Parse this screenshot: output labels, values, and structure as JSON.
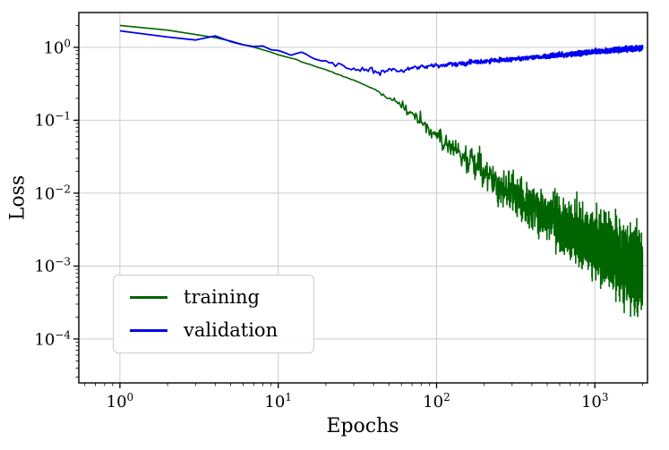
{
  "figure": {
    "background": "#ffffff"
  },
  "chart_data": {
    "type": "line",
    "title": "",
    "xlabel": "Epochs",
    "ylabel": "Loss",
    "xscale": "log",
    "yscale": "log",
    "xlim": [
      0.55,
      2150
    ],
    "ylim": [
      2.5e-05,
      3.0
    ],
    "xticks": [
      1,
      10,
      100,
      1000
    ],
    "yticks": [
      1,
      0.1,
      0.01,
      0.001,
      0.0001
    ],
    "grid": true,
    "grid_color": "#cccccc",
    "spine_color": "#000000",
    "n_epochs": 2000,
    "legend": {
      "position": "lower-left",
      "border_color": "#cccccc"
    },
    "series": [
      {
        "name": "training",
        "color": "#006400",
        "line_width": 1.6,
        "seed": 1337,
        "noise": {
          "base": 0.006,
          "slope": 0.3,
          "start": 1.6
        },
        "anchors": [
          [
            1,
            2.0
          ],
          [
            2,
            1.72
          ],
          [
            3,
            1.5
          ],
          [
            4,
            1.36
          ],
          [
            5,
            1.22
          ],
          [
            6,
            1.1
          ],
          [
            8,
            0.93
          ],
          [
            10,
            0.8
          ],
          [
            13,
            0.68
          ],
          [
            16,
            0.58
          ],
          [
            20,
            0.49
          ],
          [
            25,
            0.41
          ],
          [
            30,
            0.355
          ],
          [
            40,
            0.27
          ],
          [
            50,
            0.2
          ],
          [
            60,
            0.158
          ],
          [
            80,
            0.1
          ],
          [
            100,
            0.06
          ],
          [
            130,
            0.04
          ],
          [
            160,
            0.028
          ],
          [
            200,
            0.019
          ],
          [
            260,
            0.0125
          ],
          [
            350,
            0.0085
          ],
          [
            500,
            0.005
          ],
          [
            700,
            0.0033
          ],
          [
            1000,
            0.0021
          ],
          [
            1400,
            0.0013
          ],
          [
            2000,
            0.0007
          ]
        ]
      },
      {
        "name": "validation",
        "color": "#0000f0",
        "line_width": 1.8,
        "seed": 99,
        "noise": {
          "base": 0.032,
          "slope": 0,
          "start": 0
        },
        "anchors": [
          [
            1,
            1.65
          ],
          [
            2,
            1.48
          ],
          [
            3,
            1.3
          ],
          [
            4,
            1.48
          ],
          [
            5,
            1.2
          ],
          [
            6,
            1.05
          ],
          [
            7,
            0.98
          ],
          [
            8,
            1.06
          ],
          [
            9,
            0.95
          ],
          [
            10,
            0.88
          ],
          [
            12,
            0.78
          ],
          [
            14,
            0.84
          ],
          [
            17,
            0.71
          ],
          [
            20,
            0.63
          ],
          [
            24,
            0.57
          ],
          [
            28,
            0.52
          ],
          [
            33,
            0.47
          ],
          [
            38,
            0.5
          ],
          [
            44,
            0.45
          ],
          [
            50,
            0.49
          ],
          [
            60,
            0.48
          ],
          [
            70,
            0.52
          ],
          [
            85,
            0.54
          ],
          [
            100,
            0.565
          ],
          [
            130,
            0.59
          ],
          [
            160,
            0.615
          ],
          [
            200,
            0.64
          ],
          [
            260,
            0.67
          ],
          [
            350,
            0.71
          ],
          [
            450,
            0.74
          ],
          [
            600,
            0.78
          ],
          [
            800,
            0.83
          ],
          [
            1000,
            0.87
          ],
          [
            1300,
            0.91
          ],
          [
            1600,
            0.945
          ],
          [
            2000,
            0.98
          ]
        ]
      }
    ]
  }
}
